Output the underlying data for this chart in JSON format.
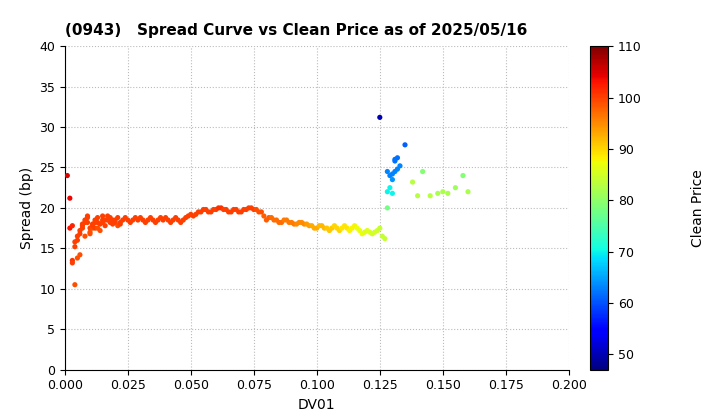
{
  "title": "(0943)   Spread Curve vs Clean Price as of 2025/05/16",
  "xlabel": "DV01",
  "ylabel": "Spread (bp)",
  "colorbar_label": "Clean Price",
  "xlim": [
    0.0,
    0.2
  ],
  "ylim": [
    0,
    40
  ],
  "xticks": [
    0.0,
    0.025,
    0.05,
    0.075,
    0.1,
    0.125,
    0.15,
    0.175,
    0.2
  ],
  "yticks": [
    0,
    5,
    10,
    15,
    20,
    25,
    30,
    35,
    40
  ],
  "cmap_min": 47,
  "cmap_max": 110,
  "colorbar_ticks": [
    50,
    60,
    70,
    80,
    90,
    100,
    110
  ],
  "background_color": "#ffffff",
  "grid_color": "#bbbbbb",
  "scatter_size": 14,
  "points": [
    [
      0.001,
      24.0,
      105
    ],
    [
      0.002,
      21.2,
      104
    ],
    [
      0.002,
      17.5,
      103
    ],
    [
      0.003,
      17.8,
      102
    ],
    [
      0.003,
      13.5,
      101
    ],
    [
      0.003,
      13.2,
      100
    ],
    [
      0.004,
      10.5,
      99
    ],
    [
      0.004,
      15.2,
      100
    ],
    [
      0.004,
      15.8,
      100
    ],
    [
      0.005,
      16.0,
      100
    ],
    [
      0.005,
      16.5,
      100
    ],
    [
      0.005,
      13.8,
      99
    ],
    [
      0.006,
      14.2,
      99
    ],
    [
      0.006,
      16.8,
      100
    ],
    [
      0.006,
      17.2,
      100
    ],
    [
      0.007,
      17.5,
      100
    ],
    [
      0.007,
      17.8,
      100
    ],
    [
      0.007,
      18.0,
      100
    ],
    [
      0.008,
      18.2,
      100
    ],
    [
      0.008,
      18.5,
      100
    ],
    [
      0.008,
      16.5,
      99
    ],
    [
      0.009,
      18.8,
      100
    ],
    [
      0.009,
      19.0,
      100
    ],
    [
      0.009,
      18.2,
      100
    ],
    [
      0.01,
      17.5,
      100
    ],
    [
      0.01,
      16.8,
      99
    ],
    [
      0.01,
      17.0,
      99
    ],
    [
      0.011,
      17.5,
      99
    ],
    [
      0.011,
      17.8,
      100
    ],
    [
      0.011,
      18.0,
      100
    ],
    [
      0.012,
      18.2,
      100
    ],
    [
      0.012,
      17.5,
      100
    ],
    [
      0.012,
      18.5,
      100
    ],
    [
      0.013,
      18.8,
      100
    ],
    [
      0.013,
      18.2,
      100
    ],
    [
      0.013,
      17.5,
      99
    ],
    [
      0.014,
      17.2,
      99
    ],
    [
      0.014,
      18.0,
      100
    ],
    [
      0.015,
      18.5,
      100
    ],
    [
      0.015,
      19.0,
      100
    ],
    [
      0.015,
      18.2,
      100
    ],
    [
      0.016,
      17.8,
      100
    ],
    [
      0.016,
      18.5,
      100
    ],
    [
      0.017,
      19.0,
      100
    ],
    [
      0.017,
      18.5,
      100
    ],
    [
      0.018,
      18.2,
      100
    ],
    [
      0.018,
      18.8,
      100
    ],
    [
      0.019,
      18.5,
      100
    ],
    [
      0.019,
      18.0,
      100
    ],
    [
      0.02,
      18.2,
      100
    ],
    [
      0.02,
      18.5,
      100
    ],
    [
      0.021,
      18.8,
      100
    ],
    [
      0.021,
      17.8,
      99
    ],
    [
      0.022,
      18.0,
      100
    ],
    [
      0.022,
      18.2,
      100
    ],
    [
      0.023,
      18.5,
      100
    ],
    [
      0.024,
      18.8,
      100
    ],
    [
      0.025,
      18.5,
      100
    ],
    [
      0.026,
      18.2,
      100
    ],
    [
      0.027,
      18.5,
      100
    ],
    [
      0.028,
      18.8,
      100
    ],
    [
      0.029,
      18.5,
      100
    ],
    [
      0.03,
      18.8,
      100
    ],
    [
      0.031,
      18.5,
      100
    ],
    [
      0.032,
      18.2,
      100
    ],
    [
      0.033,
      18.5,
      100
    ],
    [
      0.034,
      18.8,
      100
    ],
    [
      0.035,
      18.5,
      100
    ],
    [
      0.036,
      18.2,
      100
    ],
    [
      0.037,
      18.5,
      100
    ],
    [
      0.038,
      18.8,
      100
    ],
    [
      0.039,
      18.5,
      100
    ],
    [
      0.04,
      18.8,
      100
    ],
    [
      0.041,
      18.5,
      100
    ],
    [
      0.042,
      18.2,
      100
    ],
    [
      0.043,
      18.5,
      100
    ],
    [
      0.044,
      18.8,
      100
    ],
    [
      0.045,
      18.5,
      100
    ],
    [
      0.046,
      18.2,
      100
    ],
    [
      0.047,
      18.5,
      100
    ],
    [
      0.048,
      18.8,
      100
    ],
    [
      0.049,
      19.0,
      100
    ],
    [
      0.05,
      19.2,
      100
    ],
    [
      0.051,
      19.0,
      100
    ],
    [
      0.052,
      19.2,
      100
    ],
    [
      0.053,
      19.5,
      100
    ],
    [
      0.054,
      19.5,
      100
    ],
    [
      0.055,
      19.8,
      100
    ],
    [
      0.056,
      19.8,
      100
    ],
    [
      0.057,
      19.5,
      100
    ],
    [
      0.058,
      19.5,
      100
    ],
    [
      0.059,
      19.8,
      100
    ],
    [
      0.06,
      19.8,
      100
    ],
    [
      0.061,
      20.0,
      101
    ],
    [
      0.062,
      20.0,
      101
    ],
    [
      0.063,
      19.8,
      100
    ],
    [
      0.064,
      19.8,
      100
    ],
    [
      0.065,
      19.5,
      100
    ],
    [
      0.066,
      19.5,
      100
    ],
    [
      0.067,
      19.8,
      100
    ],
    [
      0.068,
      19.8,
      100
    ],
    [
      0.069,
      19.5,
      100
    ],
    [
      0.07,
      19.5,
      100
    ],
    [
      0.071,
      19.8,
      100
    ],
    [
      0.072,
      19.8,
      100
    ],
    [
      0.073,
      20.0,
      100
    ],
    [
      0.074,
      20.0,
      100
    ],
    [
      0.075,
      19.8,
      100
    ],
    [
      0.076,
      19.8,
      99
    ],
    [
      0.077,
      19.5,
      99
    ],
    [
      0.078,
      19.5,
      99
    ],
    [
      0.079,
      19.0,
      98
    ],
    [
      0.08,
      18.5,
      98
    ],
    [
      0.081,
      18.8,
      98
    ],
    [
      0.082,
      18.8,
      97
    ],
    [
      0.083,
      18.5,
      97
    ],
    [
      0.084,
      18.5,
      97
    ],
    [
      0.085,
      18.2,
      97
    ],
    [
      0.086,
      18.2,
      97
    ],
    [
      0.087,
      18.5,
      96
    ],
    [
      0.088,
      18.5,
      96
    ],
    [
      0.089,
      18.2,
      96
    ],
    [
      0.09,
      18.2,
      96
    ],
    [
      0.091,
      18.0,
      96
    ],
    [
      0.092,
      18.0,
      95
    ],
    [
      0.093,
      18.2,
      95
    ],
    [
      0.094,
      18.2,
      95
    ],
    [
      0.095,
      18.0,
      95
    ],
    [
      0.096,
      18.0,
      94
    ],
    [
      0.097,
      17.8,
      94
    ],
    [
      0.098,
      17.8,
      93
    ],
    [
      0.099,
      17.5,
      93
    ],
    [
      0.1,
      17.5,
      93
    ],
    [
      0.101,
      17.8,
      92
    ],
    [
      0.102,
      17.8,
      92
    ],
    [
      0.103,
      17.5,
      92
    ],
    [
      0.104,
      17.5,
      91
    ],
    [
      0.105,
      17.2,
      91
    ],
    [
      0.106,
      17.5,
      91
    ],
    [
      0.107,
      17.8,
      90
    ],
    [
      0.108,
      17.5,
      90
    ],
    [
      0.109,
      17.2,
      90
    ],
    [
      0.11,
      17.5,
      89
    ],
    [
      0.111,
      17.8,
      89
    ],
    [
      0.112,
      17.5,
      89
    ],
    [
      0.113,
      17.2,
      88
    ],
    [
      0.114,
      17.5,
      88
    ],
    [
      0.115,
      17.8,
      88
    ],
    [
      0.116,
      17.5,
      87
    ],
    [
      0.117,
      17.2,
      87
    ],
    [
      0.118,
      16.8,
      87
    ],
    [
      0.119,
      17.0,
      86
    ],
    [
      0.12,
      17.2,
      86
    ],
    [
      0.121,
      17.0,
      86
    ],
    [
      0.122,
      16.8,
      85
    ],
    [
      0.123,
      17.0,
      85
    ],
    [
      0.124,
      17.2,
      85
    ],
    [
      0.125,
      17.5,
      84
    ],
    [
      0.126,
      16.5,
      84
    ],
    [
      0.127,
      16.2,
      84
    ],
    [
      0.125,
      31.2,
      50
    ],
    [
      0.128,
      20.0,
      78
    ],
    [
      0.128,
      24.5,
      63
    ],
    [
      0.128,
      22.0,
      70
    ],
    [
      0.129,
      24.0,
      63
    ],
    [
      0.129,
      22.5,
      70
    ],
    [
      0.13,
      23.5,
      64
    ],
    [
      0.13,
      21.8,
      70
    ],
    [
      0.13,
      24.2,
      63
    ],
    [
      0.131,
      26.0,
      62
    ],
    [
      0.131,
      24.5,
      63
    ],
    [
      0.131,
      25.8,
      62
    ],
    [
      0.132,
      26.2,
      62
    ],
    [
      0.132,
      24.8,
      63
    ],
    [
      0.133,
      25.2,
      63
    ],
    [
      0.135,
      27.8,
      61
    ],
    [
      0.138,
      23.2,
      83
    ],
    [
      0.14,
      21.5,
      83
    ],
    [
      0.142,
      24.5,
      79
    ],
    [
      0.145,
      21.5,
      83
    ],
    [
      0.148,
      21.8,
      82
    ],
    [
      0.15,
      22.0,
      82
    ],
    [
      0.152,
      21.8,
      82
    ],
    [
      0.155,
      22.5,
      81
    ],
    [
      0.158,
      24.0,
      79
    ],
    [
      0.16,
      22.0,
      82
    ]
  ]
}
